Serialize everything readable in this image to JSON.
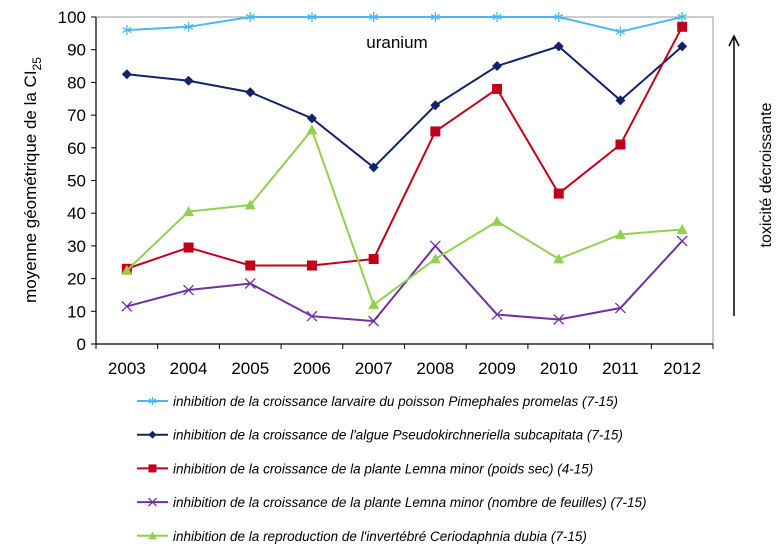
{
  "chart_data": {
    "type": "line",
    "annotation": "uranium",
    "ylabel": "moyenne géométrique de la CI",
    "ylabel_sub": "25",
    "right_label": "toxicité décroissante",
    "ylim": [
      0,
      100
    ],
    "yticks": [
      0,
      10,
      20,
      30,
      40,
      50,
      60,
      70,
      80,
      90,
      100
    ],
    "categories": [
      "2003",
      "2004",
      "2005",
      "2006",
      "2007",
      "2008",
      "2009",
      "2010",
      "2011",
      "2012"
    ],
    "grid": false,
    "legend_position": "bottom",
    "series": [
      {
        "name": "inhibition de la croissance larvaire du poisson Pimephales promelas (7-15)",
        "color": "#4DB8F0",
        "marker": "asterisk",
        "values": [
          96,
          97,
          100,
          100,
          100,
          100,
          100,
          100,
          95.5,
          100
        ]
      },
      {
        "name": "inhibition de la croissance de l'algue Pseudokirchneriella subcapitata (7-15)",
        "color": "#12226B",
        "marker": "diamond",
        "values": [
          82.5,
          80.5,
          77,
          69,
          54,
          73,
          85,
          91,
          74.5,
          91
        ]
      },
      {
        "name": "inhibition de la croissance de la plante Lemna minor (poids sec) (4-15)",
        "color": "#C0001A",
        "marker": "square",
        "values": [
          23,
          29.5,
          24,
          24,
          26,
          65,
          78,
          46,
          61,
          97
        ]
      },
      {
        "name": "inhibition de la croissance de la plante Lemna minor (nombre de feuilles) (7-15)",
        "color": "#7030A0",
        "marker": "x",
        "values": [
          11.5,
          16.5,
          18.5,
          8.5,
          7,
          30,
          9,
          7.5,
          11,
          31.5
        ]
      },
      {
        "name": "inhibition de la reproduction de l'invertébré Ceriodaphnia dubia (7-15)",
        "color": "#92D050",
        "marker": "triangle",
        "values": [
          22.5,
          40.5,
          42.5,
          65.5,
          12,
          26,
          37.5,
          26,
          33.5,
          35
        ]
      }
    ]
  }
}
